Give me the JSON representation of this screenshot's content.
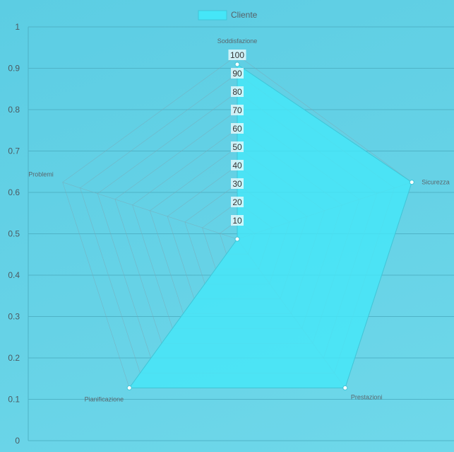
{
  "chart_data": {
    "type": "radar",
    "legend": {
      "position": "top",
      "label": "Cliente"
    },
    "colors": {
      "fill": "#45e6f8",
      "stroke": "#3fc6d8",
      "grid": "#7aaab8",
      "point": "#ffffff"
    },
    "left_axis": {
      "ylim": [
        0,
        1
      ],
      "ticks": [
        "0",
        "0.1",
        "0.2",
        "0.3",
        "0.4",
        "0.5",
        "0.6",
        "0.7",
        "0.8",
        "0.9",
        "1"
      ],
      "grid": true
    },
    "radial": {
      "max": 100,
      "ticks": [
        "10",
        "20",
        "30",
        "40",
        "50",
        "60",
        "70",
        "80",
        "90",
        "100"
      ]
    },
    "axes": [
      "Soddisfazione",
      "Sicurezza",
      "Prestazioni",
      "Pianificazione",
      "Problemi"
    ],
    "series": [
      {
        "name": "Cliente",
        "values": [
          95,
          100,
          100,
          100,
          0
        ]
      }
    ]
  }
}
